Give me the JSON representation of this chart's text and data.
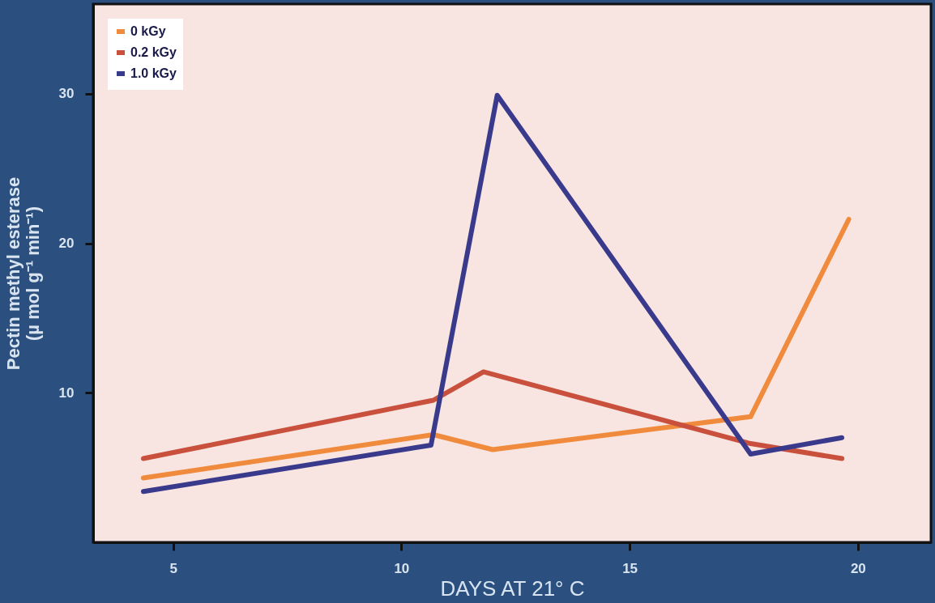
{
  "chart_data": {
    "type": "line",
    "xlabel": "DAYS AT 21° C",
    "ylabel": "Pectin methyl esterase\n(µ mol g⁻¹ min⁻¹)",
    "xlim": [
      3.25,
      21.6
    ],
    "ylim": [
      0,
      36
    ],
    "xticks": [
      5,
      10,
      15,
      20
    ],
    "yticks": [
      10,
      20,
      30
    ],
    "grid": false,
    "legend": "top left",
    "marker": "none",
    "line_style": "solid",
    "series": [
      {
        "name": "0 kGy",
        "color": "#f08a3c",
        "x": [
          4.35,
          10.7,
          12.0,
          17.65,
          19.8
        ],
        "values": [
          4.3,
          7.2,
          6.2,
          8.4,
          21.6
        ]
      },
      {
        "name": "0.2 kGy",
        "color": "#c8503c",
        "x": [
          4.35,
          10.7,
          11.8,
          17.65,
          19.65
        ],
        "values": [
          5.6,
          9.5,
          11.4,
          6.6,
          5.6
        ]
      },
      {
        "name": "1.0 kGy",
        "color": "#3a3a8c",
        "x": [
          4.35,
          10.65,
          12.1,
          17.65,
          19.65
        ],
        "values": [
          3.4,
          6.5,
          29.9,
          5.9,
          7.0
        ]
      }
    ]
  }
}
